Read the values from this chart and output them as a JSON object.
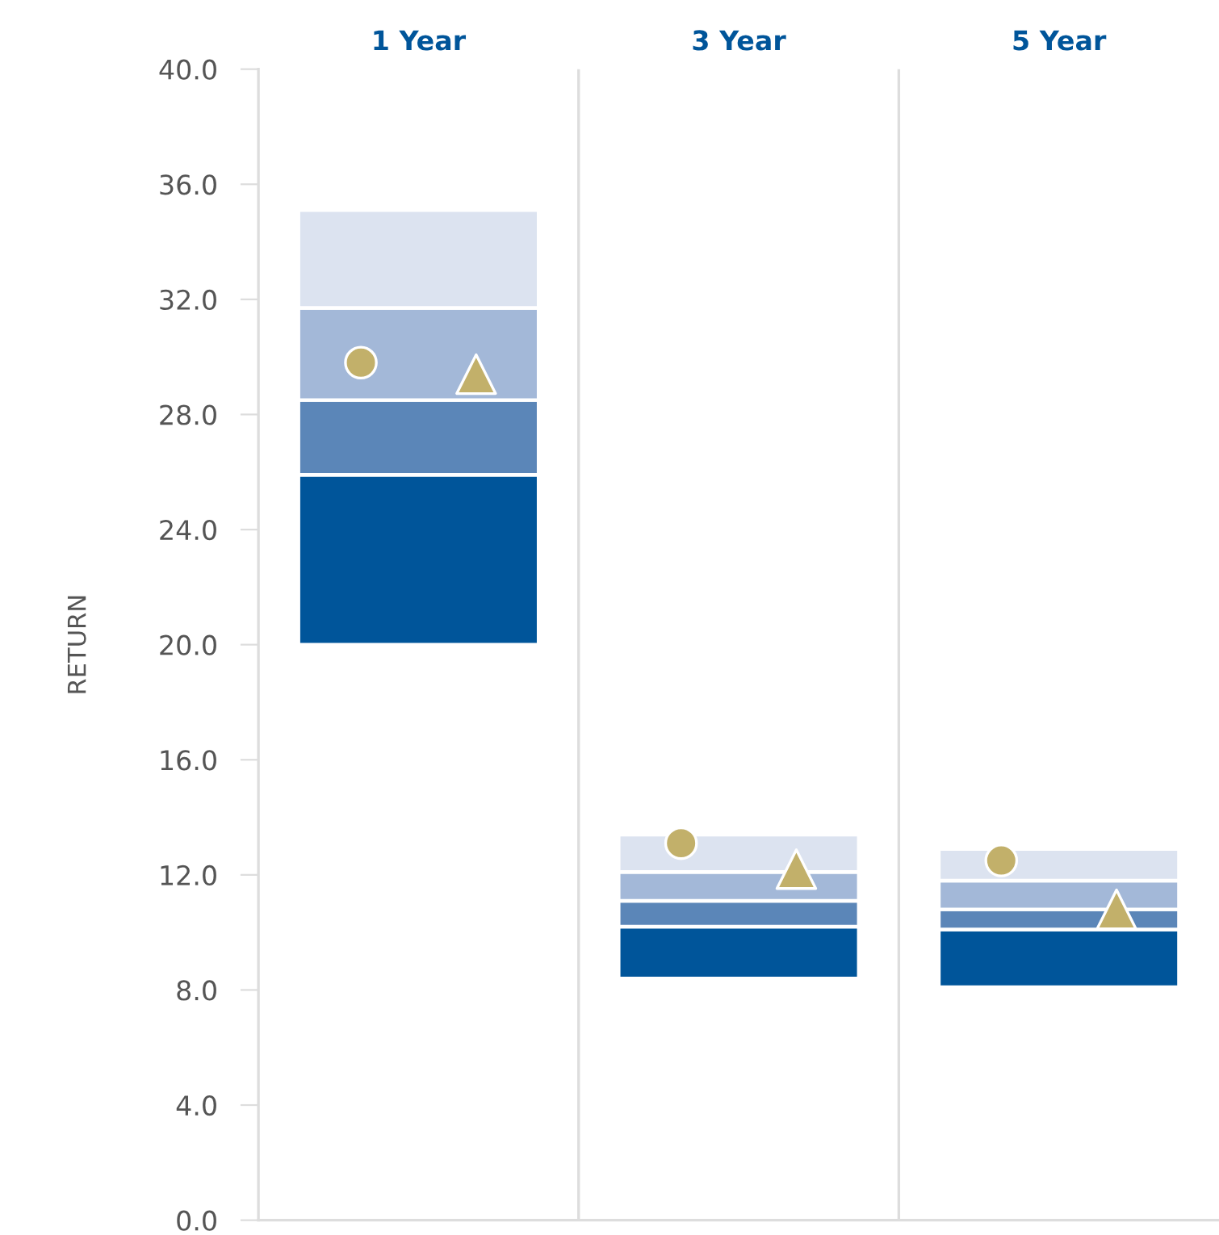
{
  "chart_data": {
    "type": "bar",
    "ylabel": "RETURN",
    "categories": [
      "1 Year",
      "3 Year",
      "5 Year"
    ],
    "series": [
      {
        "color": "#00559a",
        "base": [
          20.0,
          8.4,
          8.1
        ],
        "values": [
          5.9,
          1.8,
          2.0
        ]
      },
      {
        "color": "#5b86b8",
        "base": [
          25.9,
          10.2,
          10.1
        ],
        "values": [
          2.6,
          0.9,
          0.7
        ]
      },
      {
        "color": "#a3b8d8",
        "base": [
          28.5,
          11.1,
          10.8
        ],
        "values": [
          3.2,
          1.0,
          1.0
        ]
      },
      {
        "color": "#dce3f0",
        "base": [
          31.7,
          12.1,
          11.8
        ],
        "values": [
          3.4,
          1.3,
          1.1
        ]
      },
      {
        "type": "scatter",
        "marker": "circle",
        "color": "#c2b06a",
        "x": [
          "1 Year",
          "3 Year",
          "5 Year"
        ],
        "values": [
          29.8,
          13.1,
          12.5
        ]
      },
      {
        "type": "scatter",
        "marker": "triangle",
        "color": "#c2b06a",
        "x": [
          "1 Year",
          "3 Year",
          "5 Year"
        ],
        "values": [
          29.4,
          12.2,
          10.8
        ]
      }
    ],
    "ylim": [
      0,
      40
    ],
    "yticks": [
      {
        "value": 0,
        "label": "0.0"
      },
      {
        "value": 4,
        "label": "4.0"
      },
      {
        "value": 8,
        "label": "8.0"
      },
      {
        "value": 12,
        "label": "12.0"
      },
      {
        "value": 16,
        "label": "16.0"
      },
      {
        "value": 20,
        "label": "20.0"
      },
      {
        "value": 24,
        "label": "24.0"
      },
      {
        "value": 28,
        "label": "28.0"
      },
      {
        "value": 32,
        "label": "32.0"
      },
      {
        "value": 36,
        "label": "36.0"
      },
      {
        "value": 40,
        "label": "40.0"
      }
    ],
    "grid": "x",
    "legend": false
  }
}
